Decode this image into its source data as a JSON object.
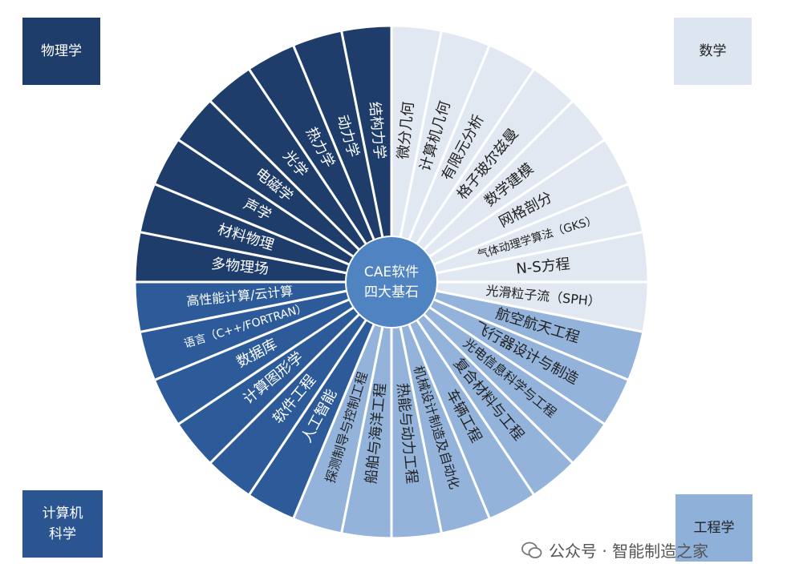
{
  "corners": {
    "physics": "物理学",
    "math": "数学",
    "computer": [
      "计算机",
      "科学"
    ],
    "engineering": "工程学"
  },
  "center": {
    "line1": "CAE软件",
    "line2": "四大基石"
  },
  "colors": {
    "physics": "#1f3d6b",
    "computer": "#2d5b9a",
    "engineering": "#93b3db",
    "math": "#e2e8f1",
    "center": "#4f83c2"
  },
  "sectors": [
    {
      "group": "math",
      "label": "微分几何"
    },
    {
      "group": "math",
      "label": "计算机几何"
    },
    {
      "group": "math",
      "label": "有限元分析"
    },
    {
      "group": "math",
      "label": "格子玻尔兹曼"
    },
    {
      "group": "math",
      "label": "数学建模"
    },
    {
      "group": "math",
      "label": "网格剖分"
    },
    {
      "group": "math",
      "label": "气体动理学算法（GKS）"
    },
    {
      "group": "math",
      "label": "N-S方程"
    },
    {
      "group": "math",
      "label": "光滑粒子流（SPH）"
    },
    {
      "group": "engineering",
      "label": "航空航天工程"
    },
    {
      "group": "engineering",
      "label": "飞行器设计与制造"
    },
    {
      "group": "engineering",
      "label": "光电信息科学与工程"
    },
    {
      "group": "engineering",
      "label": "复合材料与工程"
    },
    {
      "group": "engineering",
      "label": "车辆工程"
    },
    {
      "group": "engineering",
      "label": "机械设计制造及自动化"
    },
    {
      "group": "engineering",
      "label": "热能与动力工程"
    },
    {
      "group": "engineering",
      "label": "船舶与海洋工程"
    },
    {
      "group": "engineering",
      "label": "探测制导与控制工程"
    },
    {
      "group": "computer",
      "label": "人工智能"
    },
    {
      "group": "computer",
      "label": "软件工程"
    },
    {
      "group": "computer",
      "label": "计算图形学"
    },
    {
      "group": "computer",
      "label": "数据库"
    },
    {
      "group": "computer",
      "label": "语言（C++/FORTRAN）"
    },
    {
      "group": "computer",
      "label": "高性能计算/云计算"
    },
    {
      "group": "physics",
      "label": "多物理场"
    },
    {
      "group": "physics",
      "label": "材料物理"
    },
    {
      "group": "physics",
      "label": "声学"
    },
    {
      "group": "physics",
      "label": "电磁学"
    },
    {
      "group": "physics",
      "label": "光学"
    },
    {
      "group": "physics",
      "label": "热力学"
    },
    {
      "group": "physics",
      "label": "动力学"
    },
    {
      "group": "physics",
      "label": "结构力学"
    }
  ],
  "watermark": "公众号 · 智能制造之家"
}
